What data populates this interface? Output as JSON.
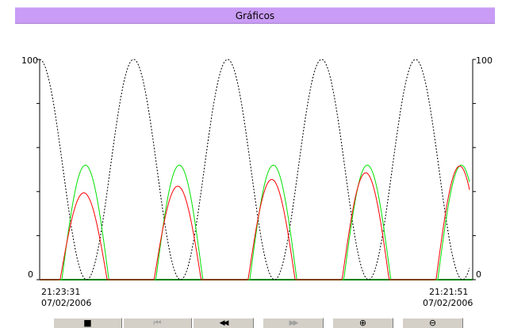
{
  "window": {
    "title": "Gráficos"
  },
  "trend": {
    "y_left": {
      "top": "100",
      "bottom": "0"
    },
    "y_right": {
      "top": "100",
      "bottom": "0"
    },
    "time_start": {
      "time": "21:23:31",
      "date": "07/02/2006"
    },
    "time_end": {
      "time": "21:21:51",
      "date": "07/02/2006"
    },
    "colors": {
      "black_series": "#000000",
      "green_series": "#00e000",
      "red_series": "#ff0000",
      "baseline": "#008000"
    }
  },
  "toolbar": {
    "buttons": [
      {
        "name": "stop-button",
        "icon": "stop-icon",
        "glyph": "■",
        "enabled": true
      },
      {
        "name": "go-to-start-button",
        "icon": "skip-back-icon",
        "glyph": "⏮",
        "enabled": false
      },
      {
        "name": "rewind-button",
        "icon": "rewind-icon",
        "glyph": "◀◀",
        "enabled": true
      },
      {
        "name": "fast-forward-button",
        "icon": "fast-forward-icon",
        "glyph": "▶▶",
        "enabled": false
      },
      {
        "name": "zoom-in-button",
        "icon": "zoom-in-icon",
        "glyph": "⊕",
        "enabled": true
      },
      {
        "name": "zoom-out-button",
        "icon": "zoom-out-icon",
        "glyph": "⊖",
        "enabled": true
      }
    ]
  }
}
